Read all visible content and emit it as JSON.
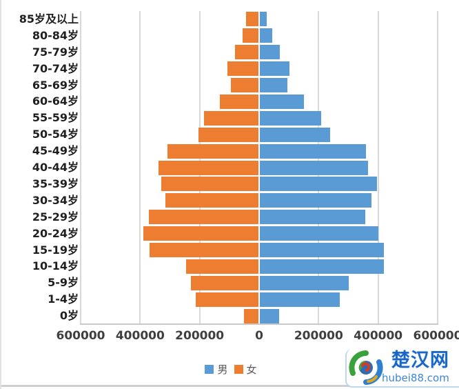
{
  "chart_data": {
    "type": "bar",
    "subtype": "population-pyramid",
    "orientation": "horizontal",
    "title": "",
    "categories": [
      "85岁及以上",
      "80-84岁",
      "75-79岁",
      "70-74岁",
      "65-69岁",
      "60-64岁",
      "55-59岁",
      "50-54岁",
      "45-49岁",
      "40-44岁",
      "35-39岁",
      "30-34岁",
      "25-29岁",
      "20-24岁",
      "15-19岁",
      "10-14岁",
      "5-9岁",
      "1-4岁",
      "0岁"
    ],
    "series": [
      {
        "name": "男",
        "side": "right",
        "color": "#5B9BD5",
        "values": [
          24000,
          42000,
          69000,
          100000,
          93000,
          150000,
          208000,
          238000,
          359000,
          364000,
          394000,
          377000,
          355000,
          400000,
          418000,
          418000,
          301000,
          270000,
          66000
        ]
      },
      {
        "name": "女",
        "side": "left",
        "color": "#ED7D31",
        "values": [
          42000,
          54000,
          79000,
          106000,
          93000,
          131000,
          185000,
          202000,
          307000,
          336000,
          328000,
          315000,
          370000,
          388000,
          367000,
          245000,
          229000,
          212000,
          50000
        ]
      }
    ],
    "x_axis": {
      "tick_values": [
        -600000,
        -400000,
        -200000,
        0,
        200000,
        400000,
        600000
      ],
      "tick_labels": [
        "600000",
        "400000",
        "200000",
        "0",
        "200000",
        "400000",
        "600000"
      ],
      "range": [
        -600000,
        600000
      ]
    },
    "legend": {
      "position": "bottom",
      "entries": [
        "男",
        "女"
      ]
    },
    "grid": true
  },
  "colors": {
    "male": "#5B9BD5",
    "female": "#ED7D31",
    "gridline": "#d9d9d9",
    "axis_text": "#3f3f3f",
    "category_text": "#1f1f1f",
    "legend_text": "#595959",
    "watermark_blue": "#1b66c9",
    "watermark_light_blue": "#3d85d6"
  },
  "watermark": {
    "title": "楚汉网",
    "domain": "hubei88.com"
  }
}
